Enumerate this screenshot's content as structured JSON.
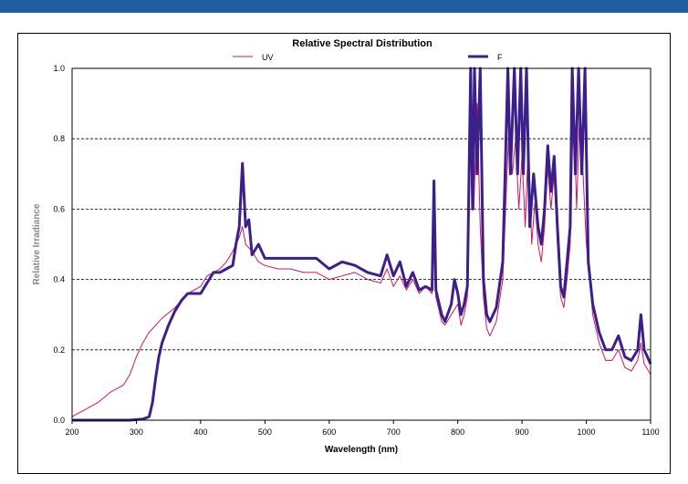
{
  "colors": {
    "top_bar": "#1f5ea0",
    "uv_series": "#d4145a",
    "f_series": "#3b1f8c",
    "grid": "#000000"
  },
  "chart_data": {
    "type": "line",
    "title": "Relative Spectral Distribution",
    "xlabel": "Wavelength (nm)",
    "ylabel": "Relative Irradiance",
    "xlim": [
      200,
      1100
    ],
    "ylim": [
      0,
      1.0
    ],
    "x_ticks": [
      200,
      300,
      400,
      500,
      600,
      700,
      800,
      900,
      1000,
      1100
    ],
    "x_tick_labels": [
      "200",
      "300",
      "400",
      "500",
      "600",
      "700",
      "800",
      "900",
      "1000",
      "1100"
    ],
    "y_ticks": [
      0,
      0.2,
      0.4,
      0.6,
      0.8,
      1.0
    ],
    "y_tick_labels": [
      "0.0",
      "0.2",
      "0.4",
      "0.6",
      "0.8",
      "1.0"
    ],
    "grid": "horizontal dashed",
    "legend_position": "top",
    "series": [
      {
        "name": "UV",
        "color": "#d4145a",
        "stroke": "thin",
        "points": [
          [
            200,
            0.01
          ],
          [
            220,
            0.03
          ],
          [
            240,
            0.05
          ],
          [
            260,
            0.08
          ],
          [
            280,
            0.1
          ],
          [
            290,
            0.13
          ],
          [
            300,
            0.18
          ],
          [
            310,
            0.22
          ],
          [
            320,
            0.25
          ],
          [
            330,
            0.27
          ],
          [
            340,
            0.29
          ],
          [
            360,
            0.32
          ],
          [
            380,
            0.36
          ],
          [
            400,
            0.38
          ],
          [
            410,
            0.41
          ],
          [
            420,
            0.42
          ],
          [
            430,
            0.43
          ],
          [
            440,
            0.45
          ],
          [
            450,
            0.48
          ],
          [
            460,
            0.52
          ],
          [
            465,
            0.55
          ],
          [
            470,
            0.5
          ],
          [
            480,
            0.48
          ],
          [
            490,
            0.45
          ],
          [
            500,
            0.44
          ],
          [
            520,
            0.43
          ],
          [
            540,
            0.43
          ],
          [
            560,
            0.42
          ],
          [
            580,
            0.42
          ],
          [
            600,
            0.4
          ],
          [
            620,
            0.41
          ],
          [
            640,
            0.42
          ],
          [
            660,
            0.4
          ],
          [
            680,
            0.39
          ],
          [
            690,
            0.43
          ],
          [
            700,
            0.38
          ],
          [
            710,
            0.41
          ],
          [
            720,
            0.37
          ],
          [
            730,
            0.4
          ],
          [
            740,
            0.36
          ],
          [
            750,
            0.38
          ],
          [
            760,
            0.36
          ],
          [
            763,
            0.63
          ],
          [
            766,
            0.35
          ],
          [
            775,
            0.28
          ],
          [
            780,
            0.27
          ],
          [
            790,
            0.3
          ],
          [
            800,
            0.33
          ],
          [
            805,
            0.27
          ],
          [
            810,
            0.3
          ],
          [
            815,
            0.35
          ],
          [
            820,
            0.8
          ],
          [
            825,
            0.6
          ],
          [
            830,
            0.9
          ],
          [
            835,
            0.55
          ],
          [
            840,
            0.35
          ],
          [
            845,
            0.26
          ],
          [
            850,
            0.24
          ],
          [
            860,
            0.28
          ],
          [
            870,
            0.4
          ],
          [
            880,
            0.85
          ],
          [
            885,
            0.7
          ],
          [
            890,
            0.8
          ],
          [
            895,
            0.6
          ],
          [
            900,
            0.75
          ],
          [
            905,
            0.55
          ],
          [
            910,
            0.8
          ],
          [
            915,
            0.5
          ],
          [
            920,
            0.62
          ],
          [
            925,
            0.5
          ],
          [
            930,
            0.45
          ],
          [
            935,
            0.55
          ],
          [
            940,
            0.72
          ],
          [
            945,
            0.6
          ],
          [
            950,
            0.7
          ],
          [
            955,
            0.5
          ],
          [
            960,
            0.35
          ],
          [
            965,
            0.32
          ],
          [
            970,
            0.4
          ],
          [
            975,
            0.5
          ],
          [
            980,
            0.9
          ],
          [
            985,
            0.6
          ],
          [
            990,
            0.9
          ],
          [
            995,
            0.7
          ],
          [
            1000,
            0.5
          ],
          [
            1005,
            0.4
          ],
          [
            1010,
            0.3
          ],
          [
            1020,
            0.22
          ],
          [
            1030,
            0.17
          ],
          [
            1040,
            0.17
          ],
          [
            1050,
            0.2
          ],
          [
            1060,
            0.15
          ],
          [
            1070,
            0.14
          ],
          [
            1080,
            0.17
          ],
          [
            1085,
            0.22
          ],
          [
            1090,
            0.16
          ],
          [
            1100,
            0.13
          ]
        ]
      },
      {
        "name": "F",
        "color": "#3b1f8c",
        "stroke": "thick",
        "points": [
          [
            200,
            0.0
          ],
          [
            260,
            0.0
          ],
          [
            290,
            0.0
          ],
          [
            310,
            0.003
          ],
          [
            320,
            0.01
          ],
          [
            325,
            0.05
          ],
          [
            330,
            0.12
          ],
          [
            335,
            0.18
          ],
          [
            340,
            0.22
          ],
          [
            350,
            0.27
          ],
          [
            360,
            0.31
          ],
          [
            370,
            0.34
          ],
          [
            380,
            0.36
          ],
          [
            390,
            0.36
          ],
          [
            400,
            0.36
          ],
          [
            410,
            0.39
          ],
          [
            420,
            0.42
          ],
          [
            430,
            0.42
          ],
          [
            440,
            0.43
          ],
          [
            450,
            0.44
          ],
          [
            455,
            0.5
          ],
          [
            460,
            0.55
          ],
          [
            465,
            0.73
          ],
          [
            470,
            0.55
          ],
          [
            475,
            0.57
          ],
          [
            480,
            0.47
          ],
          [
            490,
            0.5
          ],
          [
            500,
            0.46
          ],
          [
            520,
            0.46
          ],
          [
            540,
            0.46
          ],
          [
            560,
            0.46
          ],
          [
            580,
            0.46
          ],
          [
            600,
            0.43
          ],
          [
            620,
            0.45
          ],
          [
            640,
            0.44
          ],
          [
            660,
            0.42
          ],
          [
            680,
            0.41
          ],
          [
            690,
            0.47
          ],
          [
            700,
            0.41
          ],
          [
            710,
            0.45
          ],
          [
            720,
            0.38
          ],
          [
            730,
            0.42
          ],
          [
            740,
            0.37
          ],
          [
            750,
            0.38
          ],
          [
            760,
            0.37
          ],
          [
            763,
            0.68
          ],
          [
            766,
            0.37
          ],
          [
            775,
            0.3
          ],
          [
            780,
            0.28
          ],
          [
            790,
            0.33
          ],
          [
            795,
            0.4
          ],
          [
            800,
            0.36
          ],
          [
            805,
            0.3
          ],
          [
            810,
            0.33
          ],
          [
            815,
            0.38
          ],
          [
            820,
            1.0
          ],
          [
            823,
            0.6
          ],
          [
            826,
            1.0
          ],
          [
            830,
            0.7
          ],
          [
            835,
            1.0
          ],
          [
            840,
            0.4
          ],
          [
            845,
            0.3
          ],
          [
            850,
            0.28
          ],
          [
            860,
            0.32
          ],
          [
            870,
            0.45
          ],
          [
            878,
            1.0
          ],
          [
            882,
            0.7
          ],
          [
            888,
            1.0
          ],
          [
            893,
            0.7
          ],
          [
            898,
            1.0
          ],
          [
            902,
            0.7
          ],
          [
            907,
            1.0
          ],
          [
            912,
            0.55
          ],
          [
            918,
            0.7
          ],
          [
            925,
            0.55
          ],
          [
            930,
            0.5
          ],
          [
            935,
            0.6
          ],
          [
            940,
            0.78
          ],
          [
            945,
            0.65
          ],
          [
            950,
            0.75
          ],
          [
            955,
            0.55
          ],
          [
            960,
            0.38
          ],
          [
            965,
            0.35
          ],
          [
            970,
            0.45
          ],
          [
            975,
            0.55
          ],
          [
            978,
            1.0
          ],
          [
            983,
            0.7
          ],
          [
            988,
            1.0
          ],
          [
            993,
            0.7
          ],
          [
            998,
            1.0
          ],
          [
            1003,
            0.45
          ],
          [
            1010,
            0.33
          ],
          [
            1020,
            0.25
          ],
          [
            1030,
            0.2
          ],
          [
            1040,
            0.2
          ],
          [
            1050,
            0.24
          ],
          [
            1060,
            0.18
          ],
          [
            1070,
            0.17
          ],
          [
            1080,
            0.2
          ],
          [
            1085,
            0.3
          ],
          [
            1090,
            0.2
          ],
          [
            1100,
            0.16
          ]
        ]
      }
    ]
  }
}
